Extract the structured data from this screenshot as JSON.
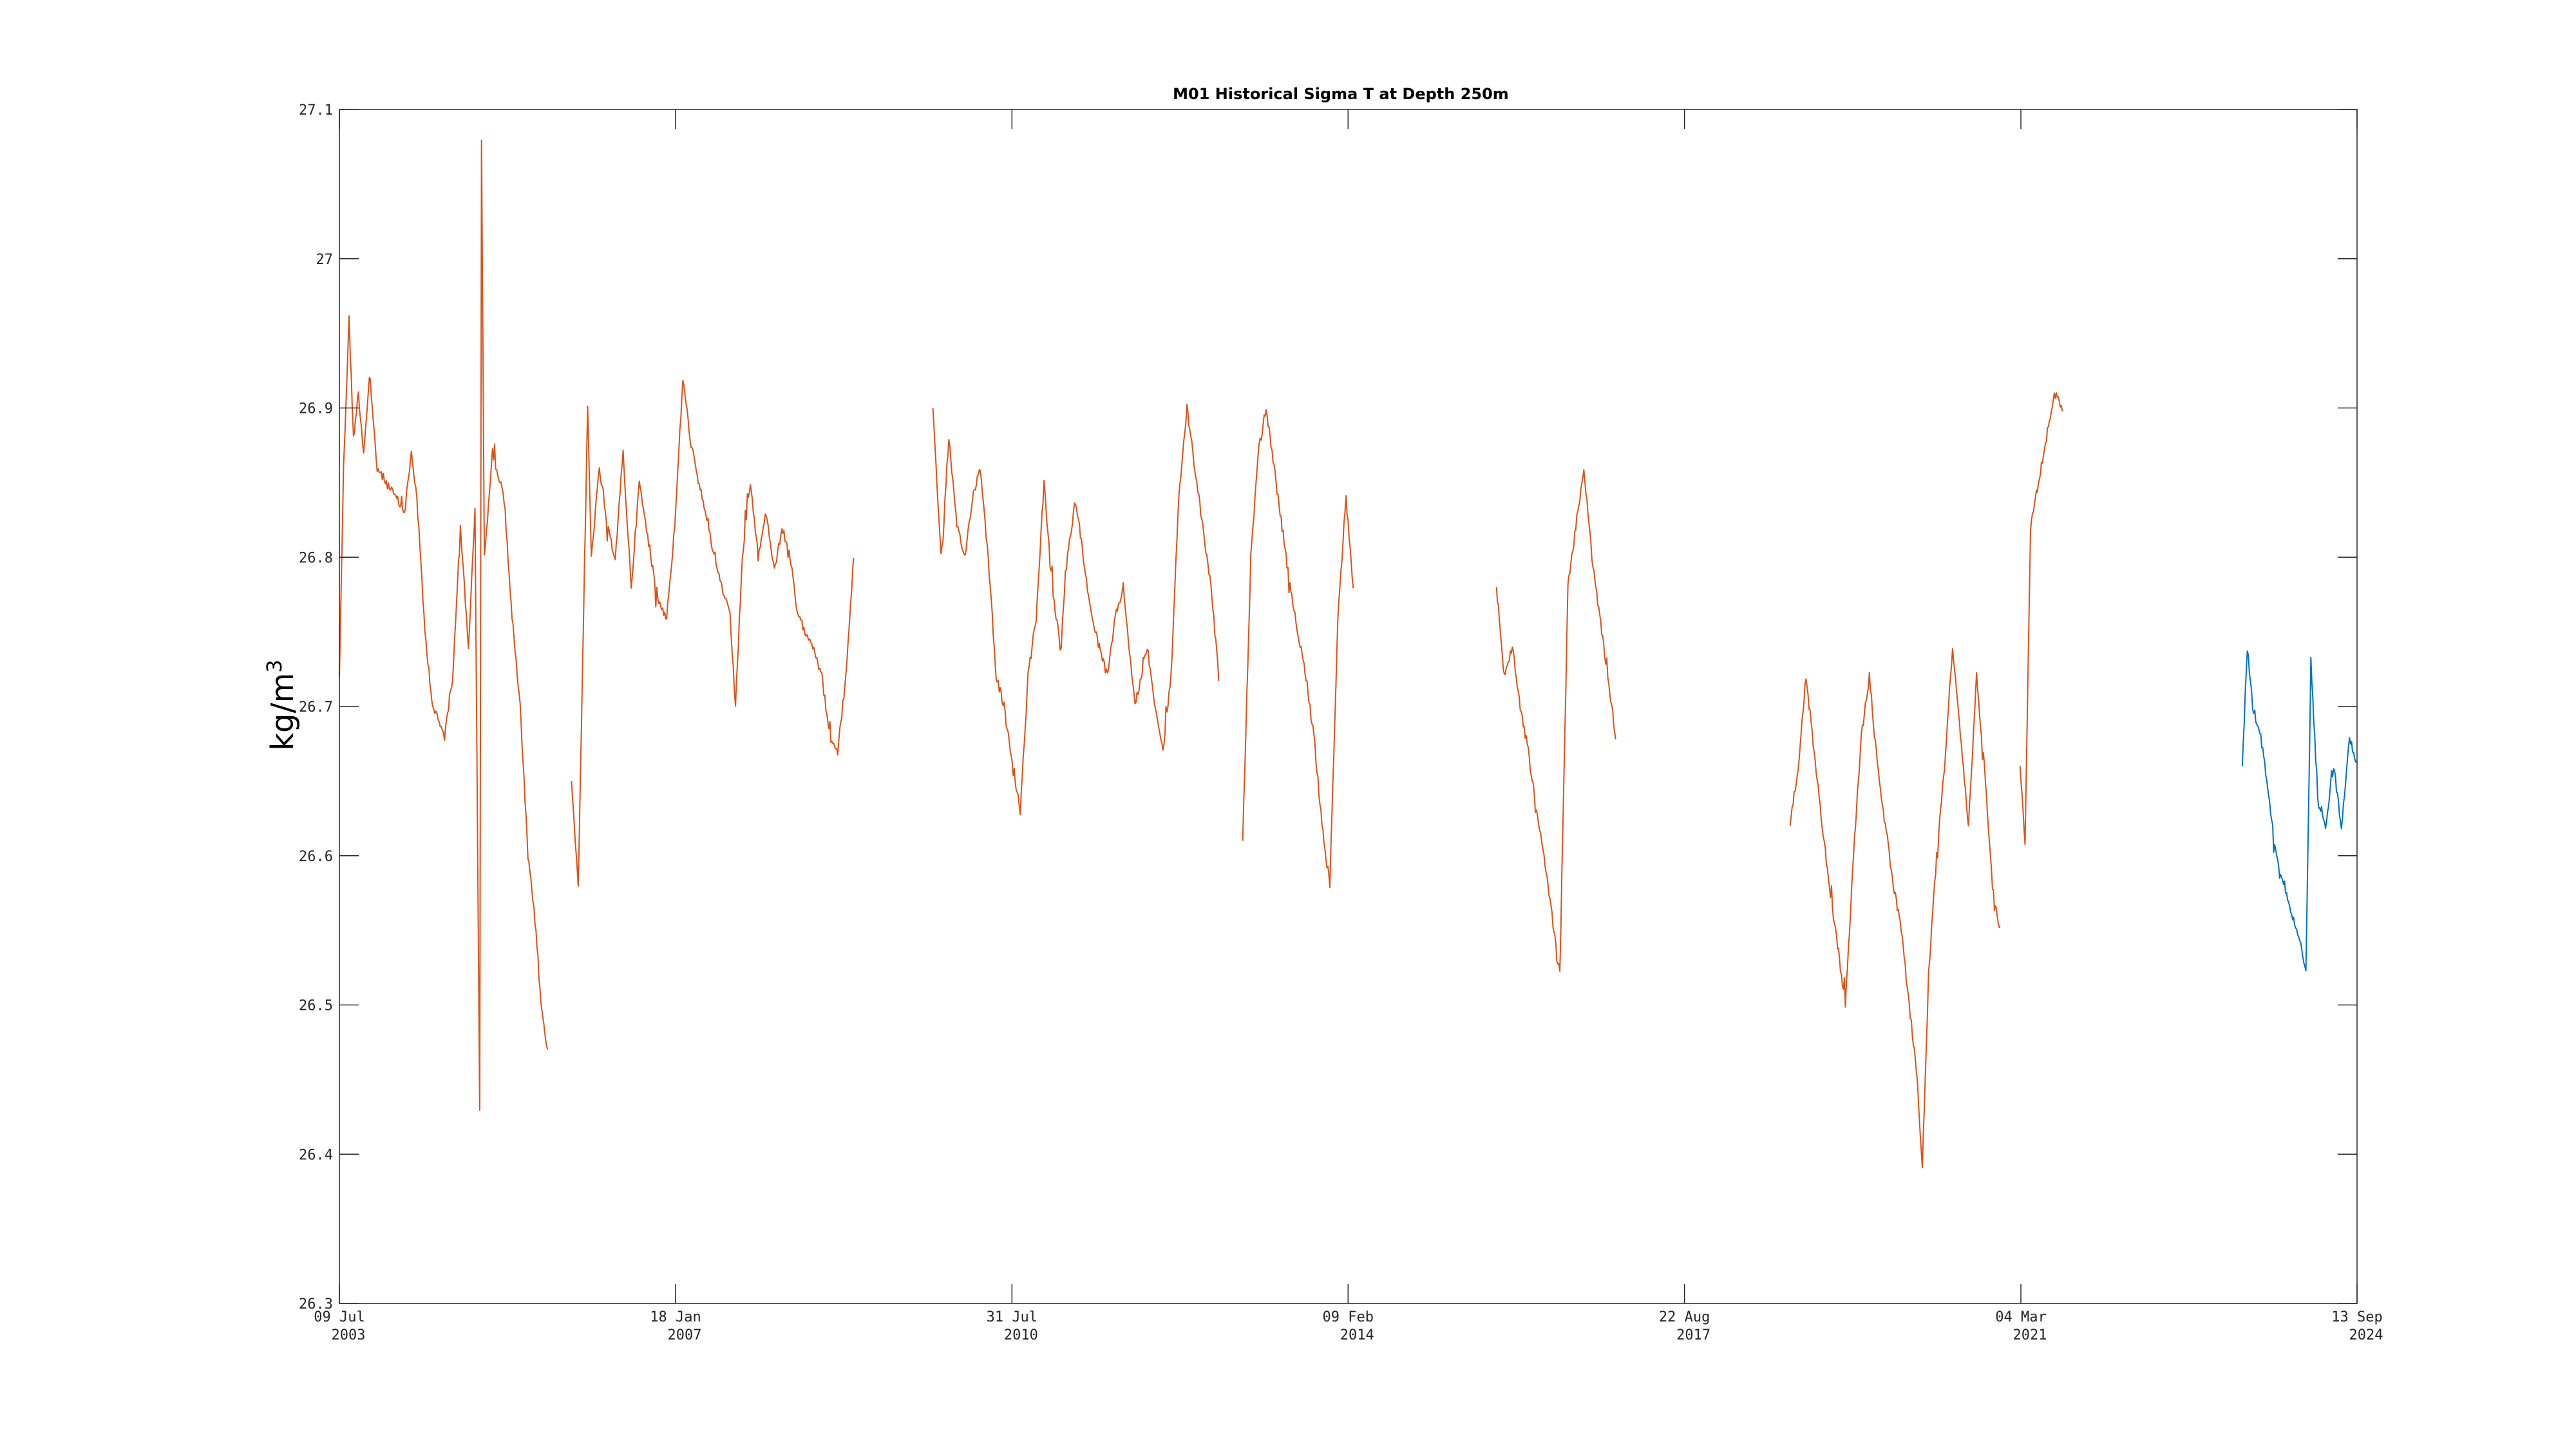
{
  "chart_data": {
    "type": "line",
    "title": "M01 Historical Sigma T at Depth 250m",
    "xlabel": "",
    "ylabel": "kg/m",
    "ylabel_superscript": "3",
    "ylim": [
      26.3,
      27.1
    ],
    "yticks": [
      26.3,
      26.4,
      26.5,
      26.6,
      26.7,
      26.8,
      26.9,
      27,
      27.1
    ],
    "xlim": [
      "2003-07-09",
      "2024-09-13"
    ],
    "xticks": [
      {
        "date": "2003-07-09",
        "line1": "09 Jul",
        "line2": "2003"
      },
      {
        "date": "2007-01-18",
        "line1": "18 Jan",
        "line2": "2007"
      },
      {
        "date": "2010-07-31",
        "line1": "31 Jul",
        "line2": "2010"
      },
      {
        "date": "2014-02-09",
        "line1": "09 Feb",
        "line2": "2014"
      },
      {
        "date": "2017-08-22",
        "line1": "22 Aug",
        "line2": "2017"
      },
      {
        "date": "2021-03-04",
        "line1": "04 Mar",
        "line2": "2021"
      },
      {
        "date": "2024-09-13",
        "line1": "13 Sep",
        "line2": "2024"
      }
    ],
    "grid": false,
    "colors": {
      "historical": "#D95319",
      "recent": "#0072BD"
    },
    "series": [
      {
        "segments": [
          [
            [
              "2003-07-09",
              26.72
            ],
            [
              "2003-07-25",
              26.86
            ],
            [
              "2003-08-15",
              26.96
            ],
            [
              "2003-09-01",
              26.88
            ],
            [
              "2003-09-20",
              26.91
            ],
            [
              "2003-10-10",
              26.87
            ],
            [
              "2003-11-01",
              26.92
            ],
            [
              "2003-12-01",
              26.86
            ],
            [
              "2004-01-05",
              26.85
            ],
            [
              "2004-02-10",
              26.84
            ],
            [
              "2004-03-15",
              26.83
            ],
            [
              "2004-04-10",
              26.87
            ],
            [
              "2004-05-01",
              26.84
            ],
            [
              "2004-06-01",
              26.75
            ],
            [
              "2004-07-01",
              26.7
            ],
            [
              "2004-08-15",
              26.68
            ],
            [
              "2004-09-15",
              26.72
            ],
            [
              "2004-10-15",
              26.82
            ],
            [
              "2004-11-15",
              26.74
            ],
            [
              "2004-12-10",
              26.83
            ],
            [
              "2004-12-28",
              26.43
            ],
            [
              "2005-01-04",
              27.08
            ],
            [
              "2005-01-15",
              26.8
            ],
            [
              "2005-02-15",
              26.87
            ],
            [
              "2005-04-01",
              26.84
            ],
            [
              "2005-05-01",
              26.76
            ],
            [
              "2005-06-01",
              26.7
            ],
            [
              "2005-07-01",
              26.6
            ],
            [
              "2005-08-01",
              26.55
            ],
            [
              "2005-08-20",
              26.5
            ],
            [
              "2005-09-15",
              26.47
            ]
          ],
          [
            [
              "2005-12-15",
              26.65
            ],
            [
              "2006-01-10",
              26.58
            ],
            [
              "2006-02-15",
              26.9
            ],
            [
              "2006-03-01",
              26.8
            ],
            [
              "2006-04-01",
              26.86
            ],
            [
              "2006-05-01",
              26.82
            ],
            [
              "2006-06-01",
              26.8
            ],
            [
              "2006-07-01",
              26.87
            ],
            [
              "2006-08-01",
              26.78
            ],
            [
              "2006-09-01",
              26.85
            ],
            [
              "2006-10-15",
              26.8
            ],
            [
              "2006-11-15",
              26.77
            ],
            [
              "2006-12-15",
              26.76
            ],
            [
              "2007-01-15",
              26.82
            ],
            [
              "2007-02-15",
              26.92
            ],
            [
              "2007-03-15",
              26.88
            ],
            [
              "2007-04-15",
              26.85
            ],
            [
              "2007-05-15",
              26.83
            ],
            [
              "2007-06-15",
              26.8
            ],
            [
              "2007-07-15",
              26.78
            ],
            [
              "2007-08-15",
              26.76
            ],
            [
              "2007-09-05",
              26.7
            ],
            [
              "2007-10-01",
              26.8
            ],
            [
              "2007-11-01",
              26.85
            ],
            [
              "2007-12-01",
              26.8
            ],
            [
              "2008-01-01",
              26.83
            ],
            [
              "2008-02-01",
              26.79
            ],
            [
              "2008-03-01",
              26.82
            ],
            [
              "2008-04-01",
              26.8
            ],
            [
              "2008-05-01",
              26.76
            ],
            [
              "2008-06-01",
              26.75
            ],
            [
              "2008-07-01",
              26.74
            ],
            [
              "2008-08-01",
              26.72
            ],
            [
              "2008-09-01",
              26.68
            ],
            [
              "2008-10-01",
              26.67
            ],
            [
              "2008-11-01",
              26.72
            ],
            [
              "2008-12-01",
              26.8
            ]
          ],
          [
            [
              "2009-10-01",
              26.9
            ],
            [
              "2009-11-01",
              26.8
            ],
            [
              "2009-12-01",
              26.88
            ],
            [
              "2010-01-01",
              26.82
            ],
            [
              "2010-02-01",
              26.8
            ],
            [
              "2010-03-01",
              26.84
            ],
            [
              "2010-04-01",
              26.86
            ],
            [
              "2010-05-01",
              26.8
            ],
            [
              "2010-06-01",
              26.72
            ],
            [
              "2010-07-01",
              26.7
            ],
            [
              "2010-08-01",
              26.66
            ],
            [
              "2010-09-01",
              26.63
            ],
            [
              "2010-10-01",
              26.72
            ],
            [
              "2010-11-01",
              26.76
            ],
            [
              "2010-12-01",
              26.85
            ],
            [
              "2011-01-01",
              26.78
            ],
            [
              "2011-02-01",
              26.74
            ],
            [
              "2011-03-01",
              26.8
            ],
            [
              "2011-04-01",
              26.84
            ],
            [
              "2011-05-01",
              26.8
            ],
            [
              "2011-06-01",
              26.76
            ],
            [
              "2011-07-01",
              26.74
            ],
            [
              "2011-08-01",
              26.72
            ],
            [
              "2011-09-01",
              26.76
            ],
            [
              "2011-10-01",
              26.78
            ],
            [
              "2011-11-15",
              26.7
            ],
            [
              "2012-01-01",
              26.74
            ],
            [
              "2012-02-01",
              26.7
            ],
            [
              "2012-03-01",
              26.67
            ],
            [
              "2012-04-01",
              26.72
            ],
            [
              "2012-05-01",
              26.84
            ],
            [
              "2012-06-01",
              26.9
            ],
            [
              "2012-07-01",
              26.86
            ],
            [
              "2012-08-01",
              26.82
            ],
            [
              "2012-09-01",
              26.78
            ],
            [
              "2012-10-01",
              26.72
            ]
          ],
          [
            [
              "2013-01-01",
              26.61
            ],
            [
              "2013-02-01",
              26.8
            ],
            [
              "2013-03-01",
              26.87
            ],
            [
              "2013-04-01",
              26.9
            ],
            [
              "2013-05-01",
              26.86
            ],
            [
              "2013-06-01",
              26.82
            ],
            [
              "2013-07-01",
              26.78
            ],
            [
              "2013-08-01",
              26.75
            ],
            [
              "2013-09-01",
              26.72
            ],
            [
              "2013-10-01",
              26.68
            ],
            [
              "2013-11-01",
              26.62
            ],
            [
              "2013-12-01",
              26.58
            ],
            [
              "2014-01-01",
              26.76
            ],
            [
              "2014-02-01",
              26.84
            ],
            [
              "2014-03-01",
              26.78
            ]
          ],
          [
            [
              "2015-09-01",
              26.78
            ],
            [
              "2015-10-01",
              26.72
            ],
            [
              "2015-11-01",
              26.74
            ],
            [
              "2015-12-01",
              26.7
            ],
            [
              "2016-01-01",
              26.67
            ],
            [
              "2016-02-01",
              26.63
            ],
            [
              "2016-03-01",
              26.6
            ],
            [
              "2016-04-01",
              26.56
            ],
            [
              "2016-05-01",
              26.52
            ],
            [
              "2016-06-01",
              26.78
            ],
            [
              "2016-07-01",
              26.82
            ],
            [
              "2016-08-01",
              26.86
            ],
            [
              "2016-09-01",
              26.8
            ],
            [
              "2016-10-01",
              26.76
            ],
            [
              "2016-11-01",
              26.72
            ],
            [
              "2016-12-01",
              26.68
            ]
          ],
          [
            [
              "2018-10-01",
              26.62
            ],
            [
              "2018-11-01",
              26.66
            ],
            [
              "2018-12-01",
              26.72
            ],
            [
              "2019-01-01",
              26.67
            ],
            [
              "2019-02-01",
              26.62
            ],
            [
              "2019-03-01",
              26.58
            ],
            [
              "2019-04-01",
              26.54
            ],
            [
              "2019-05-01",
              26.5
            ],
            [
              "2019-06-01",
              26.6
            ],
            [
              "2019-07-01",
              26.68
            ],
            [
              "2019-08-01",
              26.72
            ],
            [
              "2019-09-01",
              26.66
            ],
            [
              "2019-10-01",
              26.62
            ],
            [
              "2019-11-01",
              26.58
            ],
            [
              "2019-12-01",
              26.55
            ],
            [
              "2020-01-01",
              26.5
            ],
            [
              "2020-02-01",
              26.45
            ],
            [
              "2020-02-20",
              26.39
            ],
            [
              "2020-03-15",
              26.52
            ],
            [
              "2020-04-15",
              26.6
            ],
            [
              "2020-05-15",
              26.66
            ],
            [
              "2020-06-15",
              26.74
            ],
            [
              "2020-07-15",
              26.68
            ],
            [
              "2020-08-15",
              26.62
            ],
            [
              "2020-09-15",
              26.72
            ],
            [
              "2020-10-15",
              26.66
            ],
            [
              "2020-11-15",
              26.58
            ],
            [
              "2020-12-15",
              26.55
            ]
          ],
          [
            [
              "2021-03-01",
              26.66
            ],
            [
              "2021-03-20",
              26.61
            ],
            [
              "2021-04-10",
              26.82
            ],
            [
              "2021-05-10",
              26.85
            ],
            [
              "2021-06-10",
              26.88
            ],
            [
              "2021-07-10",
              26.91
            ],
            [
              "2021-08-10",
              26.9
            ]
          ]
        ]
      },
      {
        "segments": [
          [
            [
              "2023-07-01",
              26.66
            ],
            [
              "2023-07-20",
              26.74
            ],
            [
              "2023-08-10",
              26.7
            ],
            [
              "2023-09-10",
              26.68
            ],
            [
              "2023-10-10",
              26.64
            ],
            [
              "2023-11-10",
              26.6
            ],
            [
              "2023-12-10",
              26.58
            ],
            [
              "2024-01-10",
              26.56
            ],
            [
              "2024-02-10",
              26.54
            ],
            [
              "2024-03-01",
              26.52
            ],
            [
              "2024-03-20",
              26.73
            ],
            [
              "2024-04-15",
              26.64
            ],
            [
              "2024-05-15",
              26.62
            ],
            [
              "2024-06-15",
              26.66
            ],
            [
              "2024-07-15",
              26.62
            ],
            [
              "2024-08-15",
              26.68
            ],
            [
              "2024-09-12",
              26.66
            ]
          ]
        ]
      }
    ]
  }
}
